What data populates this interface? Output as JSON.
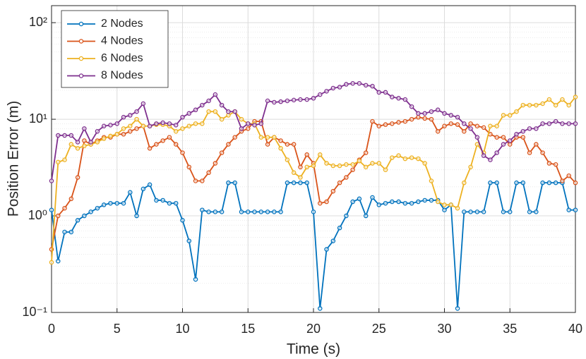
{
  "chart_data": {
    "type": "line",
    "xlabel": "Time (s)",
    "ylabel": "Position Error (m)",
    "x": [
      0,
      0.5,
      1,
      1.5,
      2,
      2.5,
      3,
      3.5,
      4,
      4.5,
      5,
      5.5,
      6,
      6.5,
      7,
      7.5,
      8,
      8.5,
      9,
      9.5,
      10,
      10.5,
      11,
      11.5,
      12,
      12.5,
      13,
      13.5,
      14,
      14.5,
      15,
      15.5,
      16,
      16.5,
      17,
      17.5,
      18,
      18.5,
      19,
      19.5,
      20,
      20.5,
      21,
      21.5,
      22,
      22.5,
      23,
      23.5,
      24,
      24.5,
      25,
      25.5,
      26,
      26.5,
      27,
      27.5,
      28,
      28.5,
      29,
      29.5,
      30,
      30.5,
      31,
      31.5,
      32,
      32.5,
      33,
      33.5,
      34,
      34.5,
      35,
      35.5,
      36,
      36.5,
      37,
      37.5,
      38,
      38.5,
      39,
      39.5,
      40
    ],
    "series": [
      {
        "name": "2 Nodes",
        "color": "#0072BD",
        "values": [
          1.15,
          0.34,
          0.68,
          0.68,
          0.9,
          1.0,
          1.1,
          1.2,
          1.3,
          1.35,
          1.35,
          1.35,
          1.75,
          1.0,
          1.9,
          2.1,
          1.45,
          1.45,
          1.35,
          1.35,
          0.9,
          0.55,
          0.22,
          1.15,
          1.1,
          1.1,
          1.1,
          2.2,
          2.2,
          1.1,
          1.1,
          1.1,
          1.1,
          1.1,
          1.1,
          1.1,
          2.2,
          2.2,
          2.2,
          2.2,
          1.1,
          0.11,
          0.45,
          0.55,
          0.75,
          1.0,
          1.4,
          1.5,
          1.0,
          1.55,
          1.3,
          1.35,
          1.4,
          1.4,
          1.35,
          1.35,
          1.4,
          1.45,
          1.45,
          1.45,
          1.15,
          1.3,
          0.11,
          1.1,
          1.1,
          1.1,
          1.1,
          2.2,
          2.2,
          1.1,
          1.1,
          2.2,
          2.2,
          1.1,
          1.1,
          2.2,
          2.2,
          2.2,
          2.2,
          1.15,
          1.15
        ]
      },
      {
        "name": "4 Nodes",
        "color": "#D95319",
        "values": [
          0.45,
          1.0,
          1.2,
          1.5,
          2.5,
          6.0,
          5.5,
          6.0,
          6.5,
          6.5,
          7.0,
          7.0,
          7.5,
          8.0,
          8.5,
          5.0,
          5.5,
          6.0,
          6.5,
          5.5,
          4.5,
          3.2,
          2.3,
          2.3,
          2.8,
          3.5,
          4.5,
          5.5,
          6.5,
          7.5,
          8.0,
          9.5,
          9.5,
          5.5,
          6.5,
          6.0,
          5.5,
          5.5,
          3.2,
          4.3,
          3.5,
          1.35,
          1.4,
          1.8,
          2.2,
          2.5,
          3.0,
          3.8,
          4.5,
          9.5,
          8.5,
          8.8,
          9.0,
          9.3,
          9.5,
          10.0,
          10.5,
          10.2,
          10.0,
          7.5,
          8.5,
          9.0,
          8.8,
          7.5,
          9.0,
          8.5,
          8.2,
          7.0,
          6.5,
          6.5,
          5.5,
          6.5,
          6.5,
          4.5,
          5.5,
          4.5,
          3.5,
          3.4,
          2.3,
          2.6,
          2.2
        ]
      },
      {
        "name": "6 Nodes",
        "color": "#EDB120",
        "values": [
          0.33,
          3.6,
          3.8,
          5.5,
          5.0,
          5.3,
          5.5,
          5.8,
          6.3,
          6.7,
          7.0,
          8.0,
          8.5,
          10.0,
          8.5,
          8.5,
          8.8,
          8.8,
          8.5,
          7.5,
          8.0,
          8.5,
          9.0,
          9.0,
          12.0,
          12.0,
          10.0,
          11.0,
          12.0,
          10.0,
          9.0,
          9.0,
          6.5,
          6.5,
          6.5,
          5.0,
          3.8,
          2.8,
          2.5,
          3.2,
          3.3,
          4.3,
          3.5,
          3.3,
          3.3,
          3.4,
          3.4,
          3.7,
          3.2,
          3.5,
          3.5,
          3.0,
          4.0,
          4.2,
          3.9,
          4.0,
          3.9,
          3.5,
          2.3,
          1.4,
          1.3,
          1.3,
          1.2,
          2.2,
          3.2,
          5.5,
          4.5,
          8.5,
          8.5,
          11.0,
          11.0,
          12.0,
          14.0,
          14.0,
          14.0,
          14.5,
          16.0,
          14.0,
          16.0,
          14.0,
          17.0
        ]
      },
      {
        "name": "8 Nodes",
        "color": "#7E2F8E",
        "values": [
          2.3,
          6.8,
          6.8,
          6.8,
          5.8,
          8.0,
          5.8,
          7.5,
          8.5,
          8.7,
          9.0,
          10.5,
          11.0,
          12.0,
          14.5,
          8.5,
          9.0,
          9.2,
          9.0,
          8.7,
          10.5,
          11.5,
          12.5,
          14.0,
          15.5,
          18.0,
          14.0,
          12.0,
          12.0,
          8.0,
          9.0,
          8.7,
          9.0,
          15.5,
          15.0,
          15.2,
          15.5,
          15.8,
          16.0,
          16.0,
          16.5,
          18.0,
          19.5,
          21.0,
          21.5,
          23.0,
          23.5,
          23.5,
          22.5,
          22.0,
          19.0,
          19.0,
          17.0,
          16.5,
          16.0,
          13.5,
          11.5,
          11.5,
          12.0,
          12.5,
          11.5,
          11.0,
          10.5,
          9.0,
          8.0,
          6.5,
          4.2,
          3.8,
          4.5,
          5.5,
          6.0,
          7.0,
          7.5,
          8.0,
          8.0,
          9.0,
          9.0,
          9.5,
          9.0,
          9.0,
          9.0
        ]
      }
    ],
    "xlim": [
      0,
      40
    ],
    "xticks": [
      0,
      5,
      10,
      15,
      20,
      25,
      30,
      35,
      40
    ],
    "ylim": [
      0.1,
      150
    ],
    "log_y": true,
    "yticks": [
      {
        "value": 0.1,
        "label": "10⁻¹"
      },
      {
        "value": 1,
        "label": "10⁰"
      },
      {
        "value": 10,
        "label": "10¹"
      },
      {
        "value": 100,
        "label": "10²"
      }
    ],
    "grid": true,
    "minor_grid": true,
    "legend": "top-left"
  }
}
